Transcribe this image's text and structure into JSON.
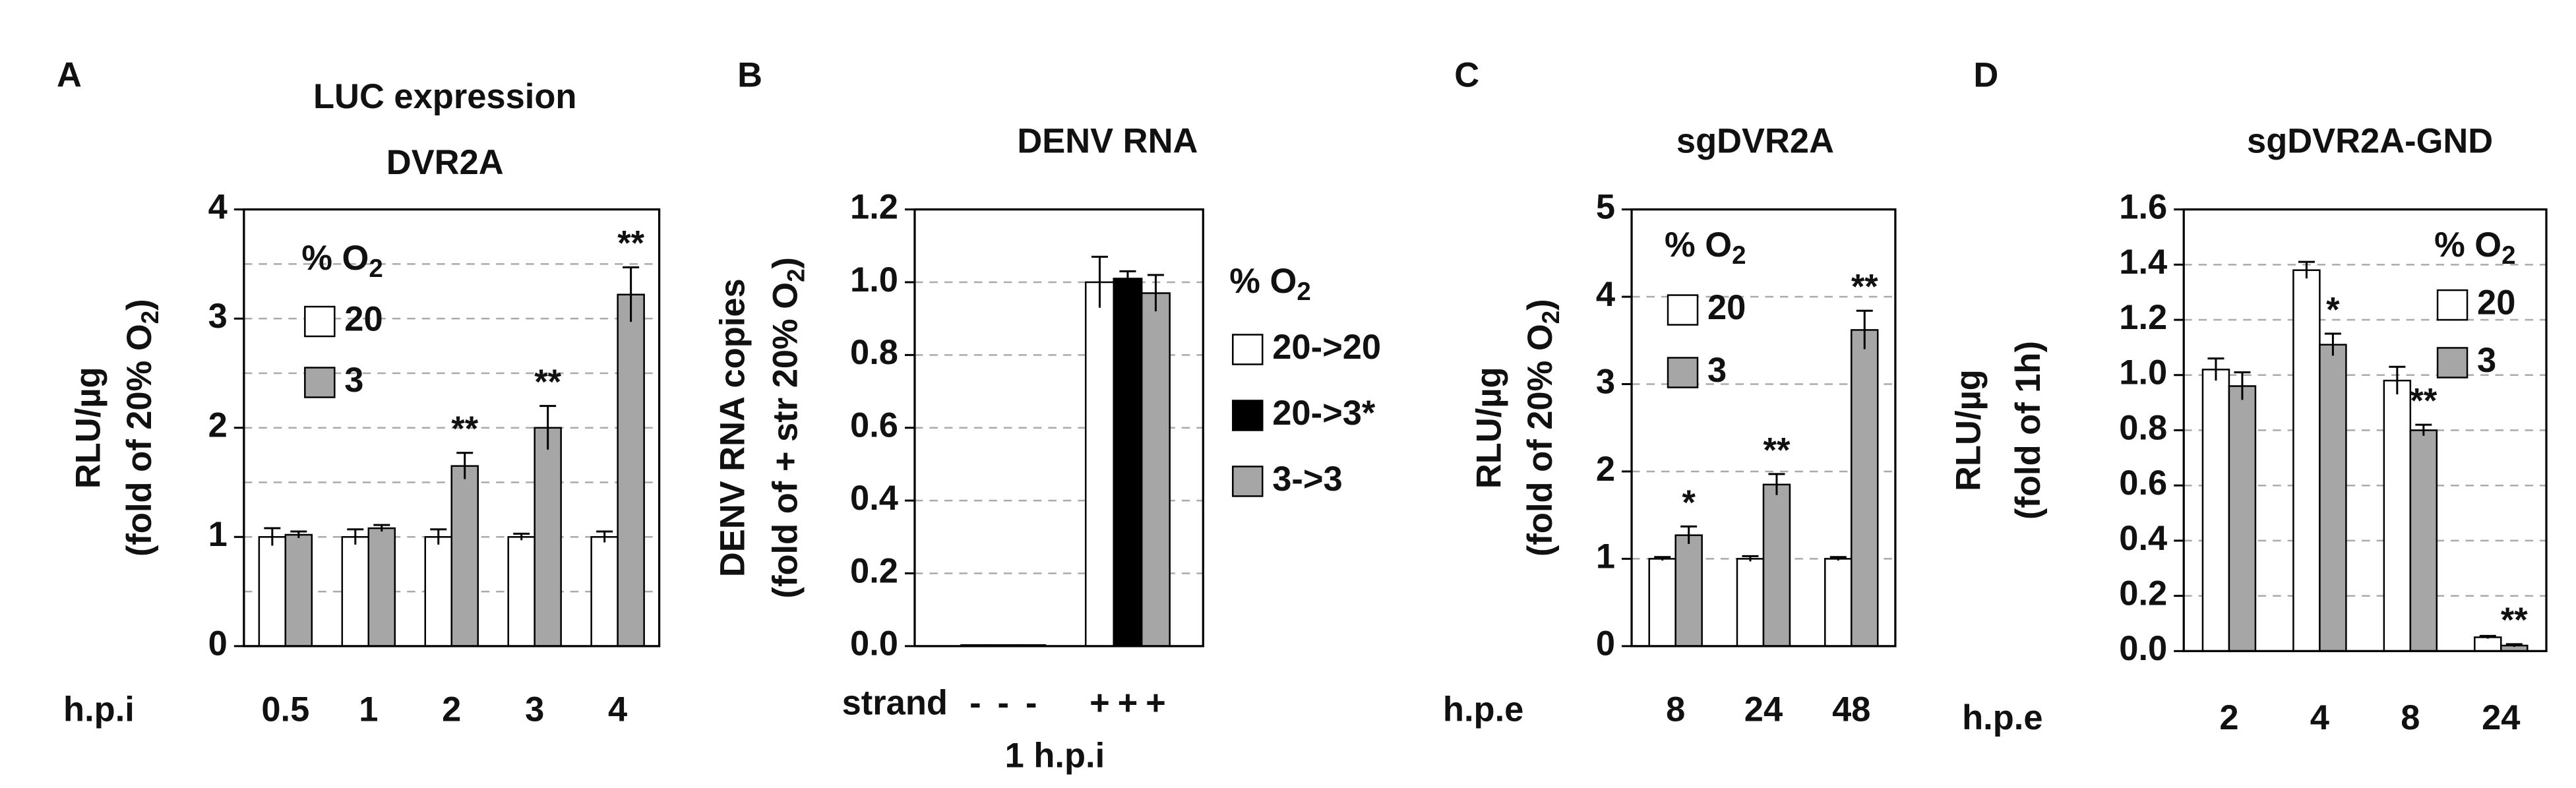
{
  "chart_data": [
    {
      "type": "bar",
      "panel": "A",
      "title": "LUC expression",
      "subtitle": "DVR2A",
      "ylabel": "RLU/µg",
      "ylabel2": [
        "(fold of 20% O",
        "2",
        ")"
      ],
      "xlabel": "h.p.i",
      "legend_title": [
        "% O",
        "2"
      ],
      "categories": [
        "0.5",
        "1",
        "2",
        "3",
        "4"
      ],
      "series": [
        {
          "name": "20",
          "color": "#ffffff",
          "values": [
            1.0,
            1.0,
            1.0,
            1.0,
            1.0
          ],
          "errors": [
            0.08,
            0.07,
            0.07,
            0.03,
            0.05
          ]
        },
        {
          "name": "3",
          "color": "#a6a6a6",
          "values": [
            1.02,
            1.08,
            1.65,
            2.0,
            3.22
          ],
          "errors": [
            0.03,
            0.03,
            0.12,
            0.2,
            0.25
          ],
          "stars": [
            null,
            null,
            "**",
            "**",
            "**"
          ]
        }
      ],
      "ylim": [
        0,
        4
      ],
      "yticks": [
        0,
        1,
        2,
        3,
        4
      ],
      "grid_lines": [
        0.5,
        1,
        1.5,
        2,
        2.5,
        3,
        3.5
      ]
    },
    {
      "type": "bar_single",
      "panel": "B",
      "title": "DENV RNA",
      "ylabel": "DENV RNA copies",
      "ylabel2": [
        "(fold of + str 20% O",
        "2",
        ")"
      ],
      "xlabel": "strand",
      "xlabel2": "1 h.p.i",
      "legend_title": [
        "% O",
        "2"
      ],
      "categories": [
        "-",
        "-",
        "-",
        "+",
        "+",
        "+"
      ],
      "values": [
        0.003,
        0.003,
        0.003,
        1.0,
        1.01,
        0.97
      ],
      "errors": [
        0,
        0,
        0,
        0.07,
        0.02,
        0.05
      ],
      "colors": [
        "#ffffff",
        "#000000",
        "#a6a6a6",
        "#ffffff",
        "#000000",
        "#a6a6a6"
      ],
      "legend": [
        {
          "name": "20->20",
          "color": "#ffffff"
        },
        {
          "name": "20->3*",
          "color": "#000000"
        },
        {
          "name": "3->3",
          "color": "#a6a6a6"
        }
      ],
      "ylim": [
        0,
        1.2
      ],
      "yticks": [
        {
          "value": 0,
          "label": "0.0"
        },
        0.2,
        0.4,
        0.6,
        0.8,
        {
          "value": 1,
          "label": "1.0"
        },
        1.2
      ],
      "grid_lines": [
        0.2,
        0.4,
        0.6,
        0.8,
        1.0
      ]
    },
    {
      "type": "bar",
      "panel": "C",
      "title": "sgDVR2A",
      "ylabel": "RLU/µg",
      "ylabel2": [
        "(fold of 20% O",
        "2",
        ")"
      ],
      "xlabel": "h.p.e",
      "legend_title": [
        "% O",
        "2"
      ],
      "categories": [
        "8",
        "24",
        "48"
      ],
      "series": [
        {
          "name": "20",
          "color": "#ffffff",
          "values": [
            1.0,
            1.0,
            1.0
          ],
          "errors": [
            0.02,
            0.03,
            0.02
          ]
        },
        {
          "name": "3",
          "color": "#a6a6a6",
          "values": [
            1.27,
            1.85,
            3.62
          ],
          "errors": [
            0.1,
            0.12,
            0.22
          ],
          "stars": [
            "*",
            "**",
            "**"
          ]
        }
      ],
      "ylim": [
        0,
        5
      ],
      "yticks": [
        0,
        1,
        2,
        3,
        4,
        5
      ],
      "grid_lines": [
        1,
        2,
        3,
        4
      ]
    },
    {
      "type": "bar",
      "panel": "D",
      "title": "sgDVR2A-GND",
      "ylabel": "RLU/µg",
      "ylabel2": [
        "(fold of 1h)"
      ],
      "xlabel": "h.p.e",
      "legend_title": [
        "% O",
        "2"
      ],
      "categories": [
        "2",
        "4",
        "8",
        "24"
      ],
      "series": [
        {
          "name": "20",
          "color": "#ffffff",
          "values": [
            1.02,
            1.38,
            0.98,
            0.05
          ],
          "errors": [
            0.04,
            0.03,
            0.05,
            0.005
          ]
        },
        {
          "name": "3",
          "color": "#a6a6a6",
          "values": [
            0.96,
            1.11,
            0.8,
            0.02
          ],
          "errors": [
            0.05,
            0.04,
            0.02,
            0.005
          ],
          "stars": [
            null,
            "*",
            "**",
            "**"
          ]
        }
      ],
      "ylim": [
        0,
        1.6
      ],
      "yticks": [
        {
          "value": 0,
          "label": "0.0"
        },
        0.2,
        0.4,
        0.6,
        0.8,
        {
          "value": 1,
          "label": "1.0"
        },
        1.2,
        1.4,
        1.6
      ],
      "grid_lines": [
        0.2,
        0.4,
        0.6,
        0.8,
        1.0,
        1.2,
        1.4
      ]
    }
  ]
}
